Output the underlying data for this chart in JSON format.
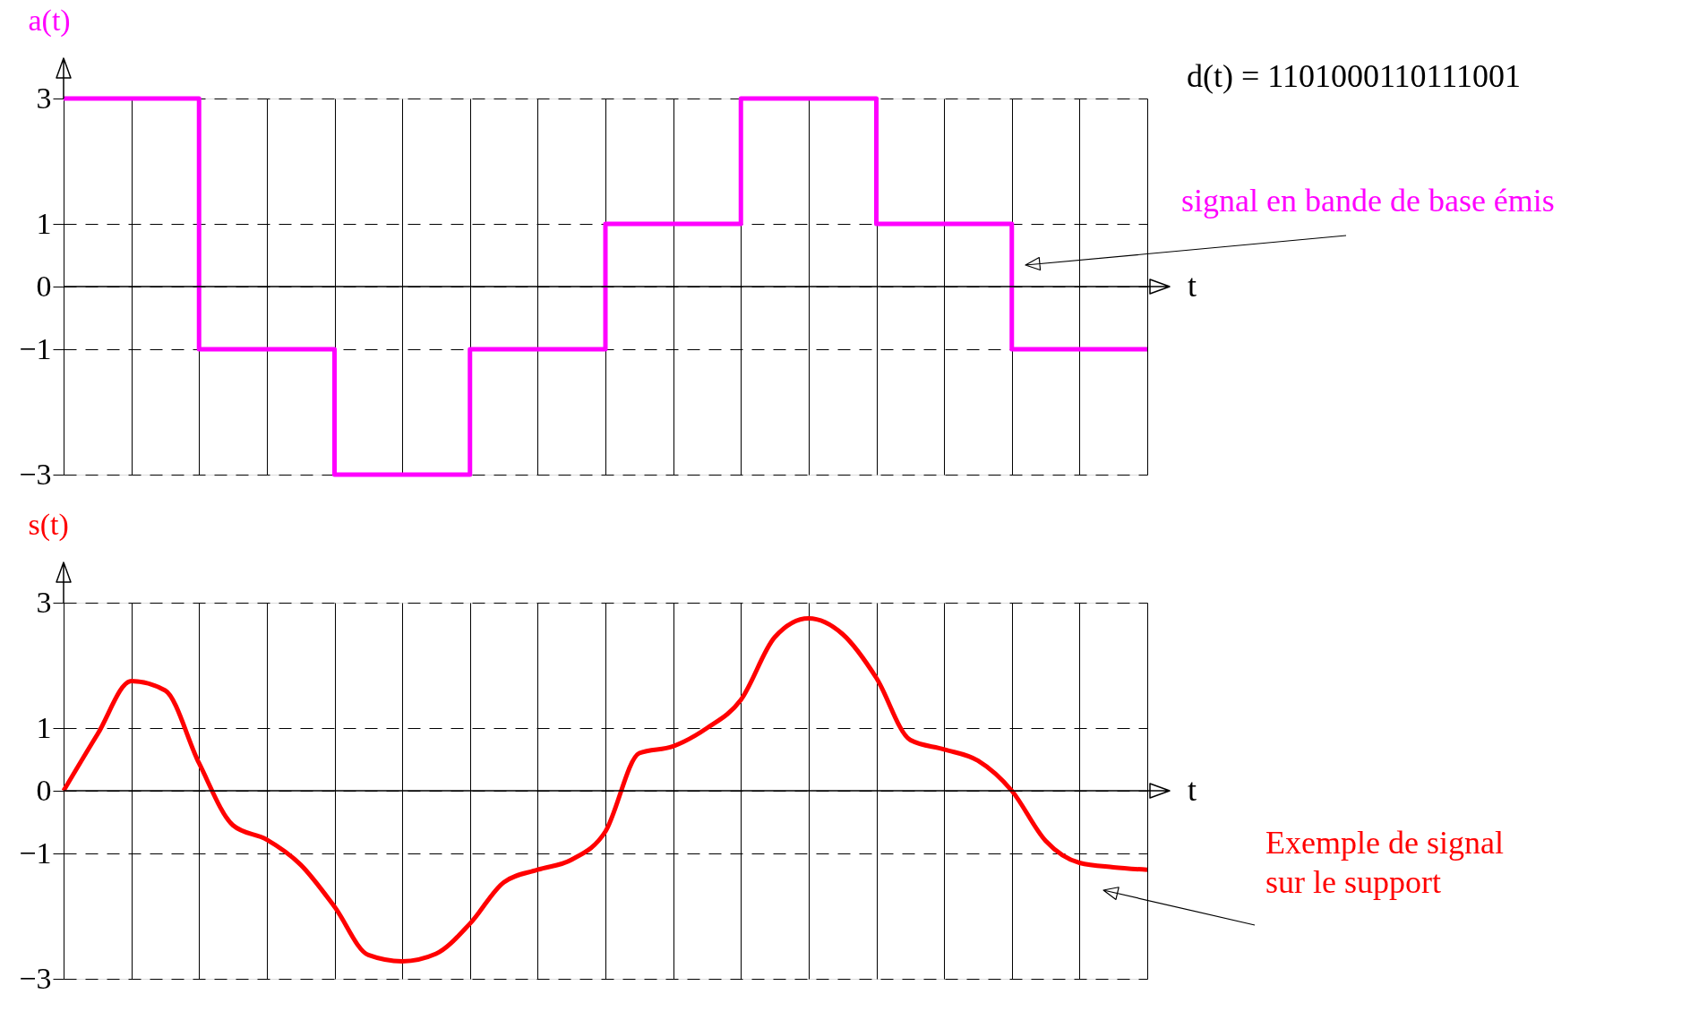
{
  "chart_data": [
    {
      "type": "step",
      "ylabel": "a(t)",
      "xlabel": "t",
      "categories": [
        null,
        null,
        null,
        null,
        null,
        null,
        null,
        null,
        null
      ],
      "ylim": [
        -3,
        3
      ],
      "yticks": [
        -3,
        -1,
        0,
        1,
        3
      ],
      "grid": true,
      "tick_labels": "y",
      "marker": "none",
      "line_style": "solid",
      "annotations": [
        "d(t) = 1101000110111001",
        "signal en bande de base émis"
      ],
      "series": [
        {
          "color": "#ff00ff",
          "values": [
            3,
            -1,
            -3,
            -1,
            1,
            3,
            1,
            -1,
            -1
          ]
        }
      ]
    },
    {
      "type": "line",
      "ylabel": "s(t)",
      "xlabel": "t",
      "categories": [
        null,
        null,
        null,
        null,
        null,
        null,
        null,
        null,
        null,
        null,
        null,
        null,
        null,
        null,
        null,
        null,
        null,
        null,
        null,
        null,
        null,
        null,
        null,
        null,
        null,
        null,
        null,
        null,
        null,
        null,
        null,
        null,
        null
      ],
      "ylim": [
        -3,
        3
      ],
      "yticks": [
        -3,
        -1,
        0,
        1,
        3
      ],
      "grid": true,
      "tick_labels": "y",
      "marker": "none",
      "line_style": "solid",
      "annotations": [
        "Exemple de signal\n sur le support"
      ],
      "series": [
        {
          "color": "#ff0000",
          "values": [
            0,
            0.9,
            1.75,
            1.6,
            0.44,
            -0.55,
            -0.78,
            -1.18,
            -1.85,
            -2.62,
            -2.72,
            -2.6,
            -2.12,
            -1.46,
            -1.26,
            -1.1,
            -0.65,
            0.6,
            0.71,
            1.0,
            1.45,
            2.45,
            2.75,
            2.5,
            1.8,
            0.81,
            0.66,
            0.48,
            0,
            -0.8,
            -1.15,
            -1.22,
            -1.26
          ]
        }
      ]
    }
  ]
}
